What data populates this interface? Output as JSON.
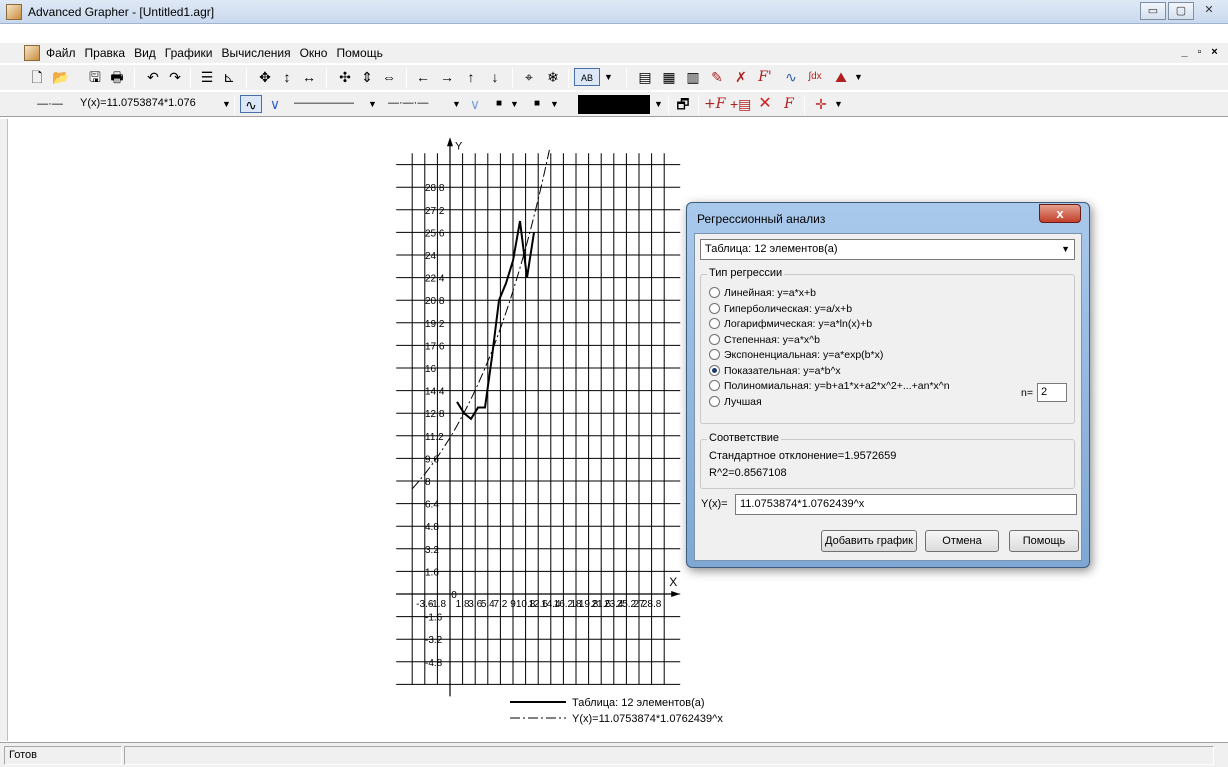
{
  "window": {
    "title": "Advanced Grapher - [Untitled1.agr]"
  },
  "menu": {
    "items": [
      "Файл",
      "Правка",
      "Вид",
      "Графики",
      "Вычисления",
      "Окно",
      "Помощь"
    ]
  },
  "toolbar2": {
    "graph_select": "Y(x)=11.0753874*1.076",
    "line_style_1": "———————",
    "line_style_2": "—·—·—"
  },
  "chart_data": {
    "type": "line",
    "xlabel": "X",
    "ylabel": "Y",
    "x_ticks": [
      "-3.6",
      "-1.8",
      "0",
      "1.8",
      "3.6",
      "5.4",
      "7.2",
      "9",
      "10.8",
      "12.6",
      "14.4",
      "16.2",
      "18",
      "19.8",
      "21.6",
      "23.4",
      "25.2",
      "27",
      "28.8"
    ],
    "y_ticks": [
      "-4.8",
      "-3.2",
      "-1.6",
      "1.6",
      "3.2",
      "4.8",
      "6.4",
      "8",
      "9.6",
      "11.2",
      "12.8",
      "14.4",
      "16",
      "17.6",
      "19.2",
      "20.8",
      "22.4",
      "24",
      "25.6",
      "27.2",
      "28.8"
    ],
    "y_tick_labels_shown": [
      "-4.8",
      "-3.2",
      "-1.6",
      "1.6",
      "3.2",
      "4.8",
      "6.4",
      "8",
      "9.6",
      "11.2",
      "12.8",
      "14.4",
      "16",
      "17.6",
      "19.2",
      "20.8",
      "22.4",
      "24",
      "25.6",
      "27.2",
      "28.8"
    ],
    "xlim": [
      -5.4,
      30.6
    ],
    "ylim": [
      -6.4,
      31.2
    ],
    "series": [
      {
        "name": "Таблица: 12 элементов(а)",
        "style": "solid",
        "x": [
          1,
          2,
          3,
          4,
          5,
          6,
          7,
          8,
          9,
          10,
          11,
          12
        ],
        "y": [
          13.6,
          12.8,
          12.4,
          13.2,
          13.2,
          16.8,
          20.8,
          22.0,
          23.6,
          26.4,
          22.4,
          25.6
        ]
      },
      {
        "name": "Y(x)=11.0753874*1.0762439^x",
        "style": "dashdot",
        "formula": {
          "a": 11.0753874,
          "b": 1.0762439
        }
      }
    ],
    "legend_position": "bottom-center"
  },
  "dialog": {
    "title": "Регрессионный анализ",
    "close": "x",
    "table_select": "Таблица: 12 элементов(а)",
    "group_type": "Тип регрессии",
    "options": [
      {
        "label": "Линейная: y=a*x+b",
        "checked": false
      },
      {
        "label": "Гиперболическая: y=a/x+b",
        "checked": false
      },
      {
        "label": "Логарифмическая: y=a*ln(x)+b",
        "checked": false
      },
      {
        "label": "Степенная: y=a*x^b",
        "checked": false
      },
      {
        "label": "Экспоненциальная: y=a*exp(b*x)",
        "checked": false
      },
      {
        "label": "Показательная: y=a*b^x",
        "checked": true
      },
      {
        "label": "Полиномиальная: y=b+a1*x+a2*x^2+...+an*x^n",
        "checked": false
      },
      {
        "label": "Лучшая",
        "checked": false
      }
    ],
    "n_label": "n=",
    "n_value": "2",
    "group_fit": "Соответствие",
    "std_dev": "Стандартное отклонение=1.9572659",
    "r2": "R^2=0.8567108",
    "y_label": "Y(x)=",
    "y_value": "11.0753874*1.0762439^x",
    "buttons": {
      "add": "Добавить график",
      "cancel": "Отмена",
      "help": "Помощь"
    }
  },
  "status": {
    "text": "Готов"
  }
}
